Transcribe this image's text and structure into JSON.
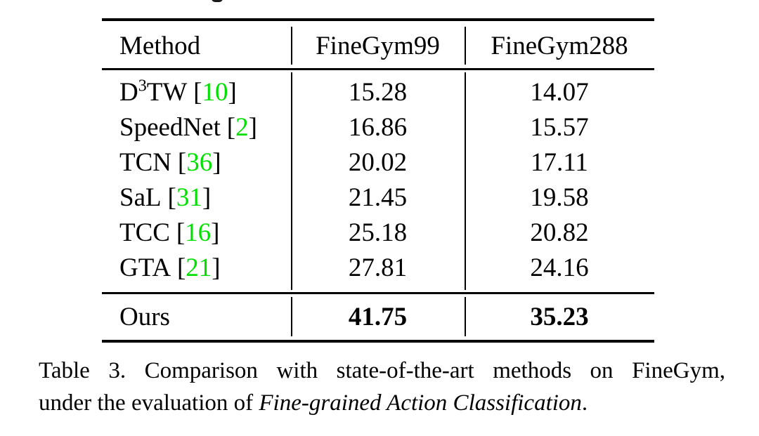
{
  "table": {
    "headers": [
      "Method",
      "FineGym99",
      "FineGym288"
    ],
    "bracket_open": "[",
    "bracket_close": "]",
    "rows": [
      {
        "pre": "D",
        "sup": "3",
        "post": "TW",
        "cite": "10",
        "v1": "15.28",
        "v2": "14.07"
      },
      {
        "pre": "SpeedNet",
        "sup": "",
        "post": "",
        "cite": "2",
        "v1": "16.86",
        "v2": "15.57"
      },
      {
        "pre": "TCN",
        "sup": "",
        "post": "",
        "cite": "36",
        "v1": "20.02",
        "v2": "17.11"
      },
      {
        "pre": "SaL",
        "sup": "",
        "post": "",
        "cite": "31",
        "v1": "21.45",
        "v2": "19.58"
      },
      {
        "pre": "TCC",
        "sup": "",
        "post": "",
        "cite": "16",
        "v1": "25.18",
        "v2": "20.82"
      },
      {
        "pre": "GTA",
        "sup": "",
        "post": "",
        "cite": "21",
        "v1": "27.81",
        "v2": "24.16"
      }
    ],
    "ours": {
      "label": "Ours",
      "v1": "41.75",
      "v2": "35.23"
    }
  },
  "caption": {
    "line1": "Table 3.  Comparison with state-of-the-art methods on FineGym,",
    "line2_prefix": "under the evaluation of ",
    "line2_italic": "Fine-grained Action Classification",
    "line2_suffix": "."
  },
  "colors": {
    "citation_green": "#00e000",
    "text_black": "#000000",
    "background": "#ffffff"
  }
}
